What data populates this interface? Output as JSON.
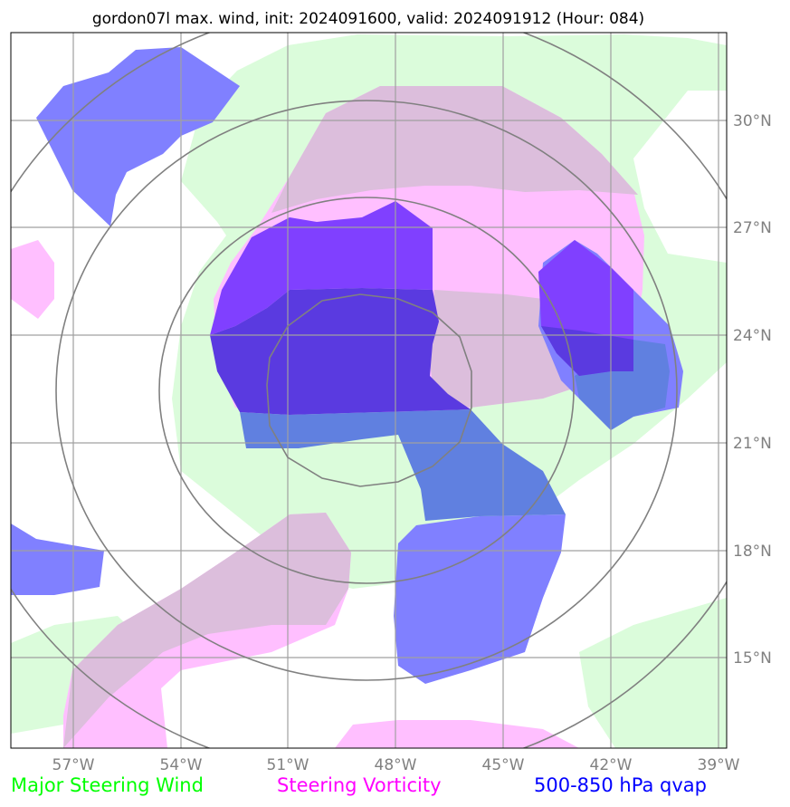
{
  "title": "gordon07l max. wind, init: 2024091600, valid: 2024091912 (Hour: 084)",
  "axes": {
    "lon_ticks": [
      "57°W",
      "54°W",
      "51°W",
      "48°W",
      "45°W",
      "42°W",
      "39°W"
    ],
    "lat_ticks": [
      "30°N",
      "27°N",
      "24°N",
      "21°N",
      "18°N",
      "15°N"
    ]
  },
  "legend": {
    "wind": {
      "label": "Major Steering Wind",
      "color": "#00ff00"
    },
    "vorticity": {
      "label": "Steering Vorticity",
      "color": "#ff00ff"
    },
    "qvap": {
      "label": "500-850 hPa qvap",
      "color": "#0000ff"
    }
  },
  "colors": {
    "wind_fill": "#dbfcdb",
    "vorticity_fill": "#ffbfff",
    "overlap_fill": "#dcbedc",
    "qvap_fill": "#8080ff",
    "qvap_vort_fill": "#8040ff",
    "qvap_wind_fill": "#6080e0",
    "core_fill": "#5a3ae0",
    "grid": "#a0a0a0",
    "range_rings": "#808080"
  }
}
